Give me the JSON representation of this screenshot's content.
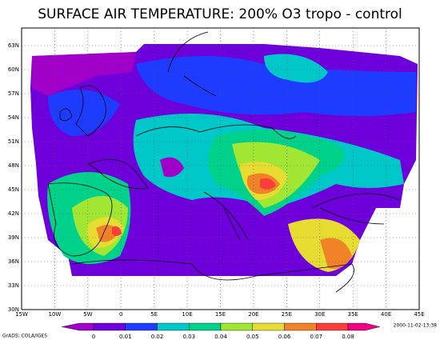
{
  "title": "SURFACE AIR TEMPERATURE: 200% O3 tropo - control",
  "lon_ticks": [
    "15W",
    "10W",
    "5W",
    "0",
    "5E",
    "10E",
    "15E",
    "20E",
    "25E",
    "30E",
    "35E",
    "40E",
    "45E"
  ],
  "lat_ticks": [
    "30N",
    "33N",
    "36N",
    "39N",
    "42N",
    "45N",
    "48N",
    "51N",
    "54N",
    "57N",
    "60N",
    "63N"
  ],
  "colorbar": {
    "labels": [
      "0",
      "0.01",
      "0.02",
      "0.03",
      "0.04",
      "0.05",
      "0.06",
      "0.07",
      "0.08"
    ],
    "colors": [
      "#a000c8",
      "#6e00dc",
      "#1e3cff",
      "#00c8c8",
      "#00d28c",
      "#a0e632",
      "#e6dc32",
      "#f08228",
      "#fa3c3c",
      "#f00082"
    ]
  },
  "footer": {
    "left": "GrADS: COLA/IGES",
    "right": "2000-11-02-13:38"
  }
}
